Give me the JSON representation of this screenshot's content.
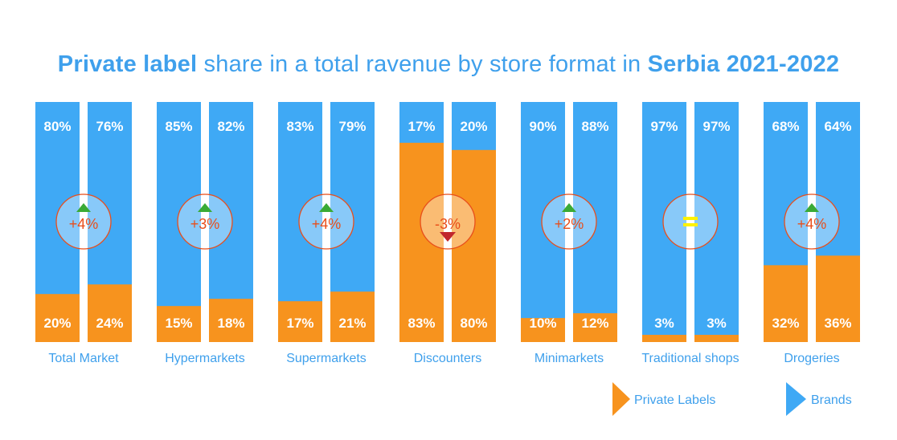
{
  "title": {
    "part1": "Private label",
    "part2": " share in a total ravenue by store format in ",
    "part3": "Serbia 2021-2022"
  },
  "colors": {
    "brands": "#3fa9f5",
    "private_labels": "#f7931e",
    "accent_text": "#3fa0ec",
    "change_text": "#e84e1b",
    "up_arrow": "#3aaa35",
    "down_arrow": "#c1272d",
    "equal_sign": "#fff200"
  },
  "chart_data": {
    "type": "bar",
    "stacked": true,
    "normalized_100": true,
    "title": "Private label share in a total ravenue by store format in Serbia 2021-2022",
    "periods": [
      "2021",
      "2022"
    ],
    "categories": [
      "Total Market",
      "Hypermarkets",
      "Supermarkets",
      "Discounters",
      "Minimarkets",
      "Traditional shops",
      "Drogeries"
    ],
    "series": [
      {
        "name": "Private Labels",
        "color": "#f7931e",
        "values": [
          [
            20,
            24
          ],
          [
            15,
            18
          ],
          [
            17,
            21
          ],
          [
            83,
            80
          ],
          [
            10,
            12
          ],
          [
            3,
            3
          ],
          [
            32,
            36
          ]
        ],
        "labels": [
          [
            "20%",
            "24%"
          ],
          [
            "15%",
            "18%"
          ],
          [
            "17%",
            "21%"
          ],
          [
            "83%",
            "80%"
          ],
          [
            "10%",
            "12%"
          ],
          [
            "3%",
            "3%"
          ],
          [
            "32%",
            "36%"
          ]
        ]
      },
      {
        "name": "Brands",
        "color": "#3fa9f5",
        "values": [
          [
            80,
            76
          ],
          [
            85,
            82
          ],
          [
            83,
            79
          ],
          [
            17,
            20
          ],
          [
            90,
            88
          ],
          [
            97,
            97
          ],
          [
            68,
            64
          ]
        ],
        "labels": [
          [
            "80%",
            "76%"
          ],
          [
            "85%",
            "82%"
          ],
          [
            "83%",
            "79%"
          ],
          [
            "17%",
            "20%"
          ],
          [
            "90%",
            "88%"
          ],
          [
            "97%",
            "97%"
          ],
          [
            "68%",
            "64%"
          ]
        ]
      }
    ],
    "changes": [
      {
        "label": "+4%",
        "direction": "up"
      },
      {
        "label": "+3%",
        "direction": "up"
      },
      {
        "label": "+4%",
        "direction": "up"
      },
      {
        "label": "-3%",
        "direction": "down"
      },
      {
        "label": "+2%",
        "direction": "up"
      },
      {
        "label": "",
        "direction": "equal"
      },
      {
        "label": "+4%",
        "direction": "up"
      }
    ],
    "ylim": [
      0,
      100
    ],
    "grid": false,
    "legend": {
      "position": "bottom-right",
      "items": [
        {
          "label": "Private Labels",
          "color": "#f7931e"
        },
        {
          "label": "Brands",
          "color": "#3fa9f5"
        }
      ]
    }
  }
}
